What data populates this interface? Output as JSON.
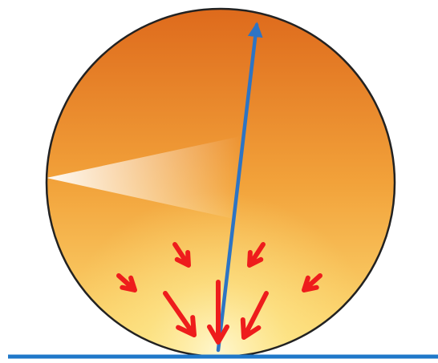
{
  "diagram": {
    "colors": {
      "sphere_top": "#de6a1c",
      "sphere_mid": "#f2a23a",
      "sphere_bottom": "#fde07a",
      "sphere_highlight": "#fff7cf",
      "outline": "#222222",
      "surface_line": "#1f78c9",
      "vector_arrow": "#2d74c4",
      "force_arrows": "#ee1c1c"
    },
    "icons": {
      "vector": "blue-arrow-icon",
      "forces": "red-arrow-icon"
    }
  }
}
